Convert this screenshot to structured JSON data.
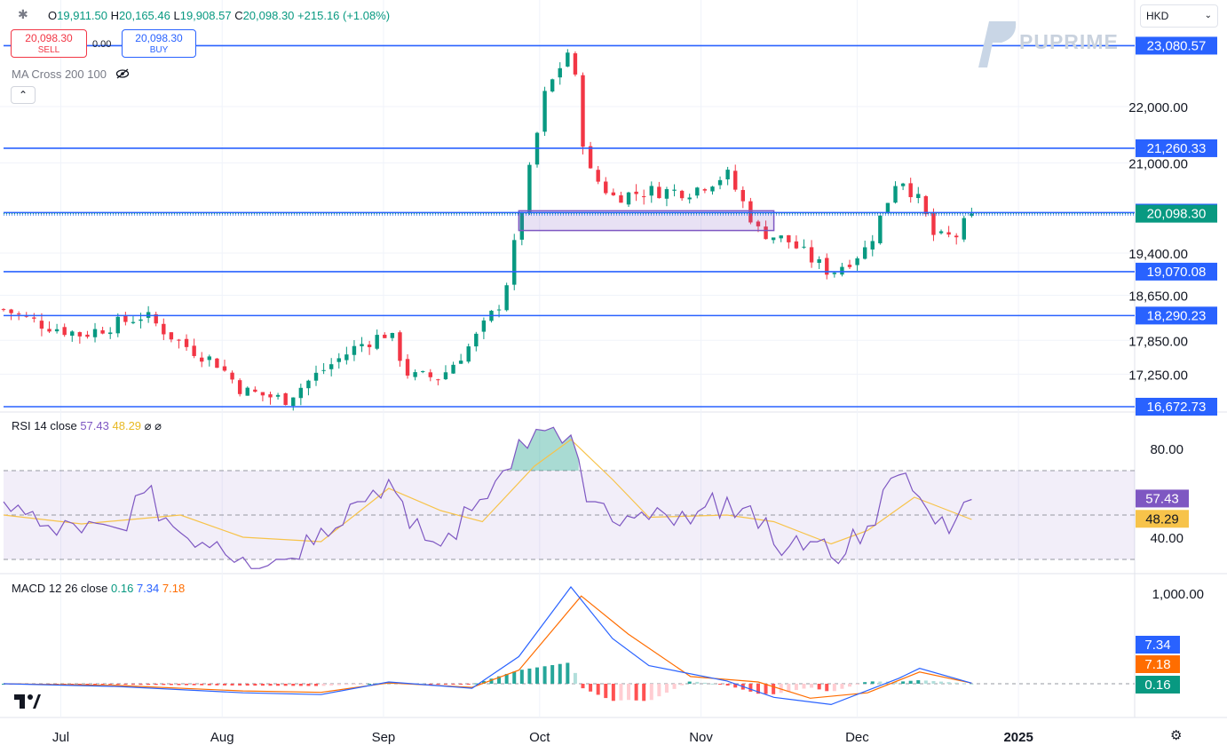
{
  "header": {
    "open_label": "O",
    "open": "19,911.50",
    "high_label": "H",
    "high": "20,165.46",
    "low_label": "L",
    "low": "19,908.57",
    "close_label": "C",
    "close": "20,098.30",
    "change": "+215.16 (+1.08%)"
  },
  "trade": {
    "sell_price": "20,098.30",
    "sell_label": "SELL",
    "spread": "0.00",
    "buy_price": "20,098.30",
    "buy_label": "BUY"
  },
  "currency": "HKD",
  "brand": "PUPRIME",
  "ma_label": "MA Cross 200 100",
  "icons": [
    "settings-icon",
    "eye-off-icon",
    "chevron-up-icon",
    "chevron-down-icon",
    "tradingview-logo-icon",
    "gear-icon"
  ],
  "colors": {
    "up": "#089981",
    "down": "#f23645",
    "level": "#2962ff",
    "rsi": "#7e57c2",
    "rsi_ma": "#f7c34a",
    "macd": "#2962ff",
    "signal": "#ff6d00"
  },
  "chart_data": [
    {
      "type": "candlestick",
      "title": "",
      "x_ticks": [
        "Jul",
        "Aug",
        "Sep",
        "Oct",
        "Nov",
        "Dec",
        "2025"
      ],
      "y_ticks": [
        "22,000.00",
        "21,000.00",
        "19,400.00",
        "18,650.00",
        "17,850.00",
        "17,250.00"
      ],
      "last_price": "20,098.30",
      "horizontal_levels": [
        "23,080.57",
        "21,260.33",
        "20,117.00",
        "19,070.08",
        "18,290.23",
        "16,672.73"
      ],
      "zone": {
        "from": 19800,
        "to": 20150
      },
      "close_path": [
        [
          "2024-06-20",
          18400
        ],
        [
          "2024-06-27",
          18150
        ],
        [
          "2024-07-05",
          17950
        ],
        [
          "2024-07-12",
          18150
        ],
        [
          "2024-07-17",
          18300
        ],
        [
          "2024-07-24",
          17800
        ],
        [
          "2024-07-31",
          17450
        ],
        [
          "2024-08-05",
          16950
        ],
        [
          "2024-08-13",
          16800
        ],
        [
          "2024-08-20",
          17300
        ],
        [
          "2024-08-27",
          17750
        ],
        [
          "2024-09-02",
          18000
        ],
        [
          "2024-09-06",
          17200
        ],
        [
          "2024-09-12",
          17200
        ],
        [
          "2024-09-18",
          17800
        ],
        [
          "2024-09-24",
          18600
        ],
        [
          "2024-09-27",
          19900
        ],
        [
          "2024-10-02",
          22200
        ],
        [
          "2024-10-07",
          23080
        ],
        [
          "2024-10-10",
          20900
        ],
        [
          "2024-10-15",
          20400
        ],
        [
          "2024-10-22",
          20500
        ],
        [
          "2024-10-30",
          20500
        ],
        [
          "2024-11-06",
          20800
        ],
        [
          "2024-11-12",
          19800
        ],
        [
          "2024-11-18",
          19600
        ],
        [
          "2024-11-22",
          19300
        ],
        [
          "2024-11-26",
          19050
        ],
        [
          "2024-12-03",
          19500
        ],
        [
          "2024-12-09",
          20800
        ],
        [
          "2024-12-13",
          20300
        ],
        [
          "2024-12-16",
          19650
        ],
        [
          "2024-12-20",
          19700
        ],
        [
          "2024-12-23",
          20098
        ]
      ]
    },
    {
      "type": "line",
      "title": "RSI",
      "label": "RSI 14 close",
      "value": "57.43",
      "ma_value": "48.29",
      "y_ticks": [
        "80.00",
        "40.00"
      ],
      "bands": [
        30,
        70
      ],
      "series": [
        {
          "name": "RSI",
          "points": [
            [
              "2024-06-20",
              56
            ],
            [
              "2024-06-27",
              45
            ],
            [
              "2024-07-05",
              42
            ],
            [
              "2024-07-12",
              44
            ],
            [
              "2024-07-17",
              60
            ],
            [
              "2024-07-24",
              42
            ],
            [
              "2024-07-31",
              38
            ],
            [
              "2024-08-05",
              31
            ],
            [
              "2024-08-13",
              30
            ],
            [
              "2024-08-20",
              44
            ],
            [
              "2024-08-27",
              56
            ],
            [
              "2024-09-02",
              66
            ],
            [
              "2024-09-06",
              44
            ],
            [
              "2024-09-12",
              36
            ],
            [
              "2024-09-18",
              52
            ],
            [
              "2024-09-24",
              70
            ],
            [
              "2024-09-27",
              84
            ],
            [
              "2024-10-02",
              88
            ],
            [
              "2024-10-07",
              86
            ],
            [
              "2024-10-10",
              56
            ],
            [
              "2024-10-15",
              47
            ],
            [
              "2024-10-22",
              48
            ],
            [
              "2024-10-30",
              46
            ],
            [
              "2024-11-06",
              58
            ],
            [
              "2024-11-12",
              44
            ],
            [
              "2024-11-18",
              36
            ],
            [
              "2024-11-22",
              38
            ],
            [
              "2024-11-26",
              31
            ],
            [
              "2024-12-03",
              45
            ],
            [
              "2024-12-09",
              68
            ],
            [
              "2024-12-13",
              58
            ],
            [
              "2024-12-16",
              46
            ],
            [
              "2024-12-20",
              48
            ],
            [
              "2024-12-23",
              57
            ]
          ]
        },
        {
          "name": "RSI MA",
          "points": [
            [
              "2024-06-20",
              50
            ],
            [
              "2024-07-05",
              46
            ],
            [
              "2024-07-24",
              50
            ],
            [
              "2024-08-05",
              40
            ],
            [
              "2024-08-20",
              38
            ],
            [
              "2024-09-02",
              62
            ],
            [
              "2024-09-12",
              52
            ],
            [
              "2024-09-20",
              47
            ],
            [
              "2024-09-30",
              72
            ],
            [
              "2024-10-07",
              84
            ],
            [
              "2024-10-15",
              66
            ],
            [
              "2024-10-22",
              49
            ],
            [
              "2024-11-06",
              50
            ],
            [
              "2024-11-15",
              47
            ],
            [
              "2024-11-26",
              37
            ],
            [
              "2024-12-03",
              43
            ],
            [
              "2024-12-12",
              58
            ],
            [
              "2024-12-23",
              48
            ]
          ]
        }
      ]
    },
    {
      "type": "line",
      "title": "MACD",
      "label": "MACD 12 26 close",
      "value": "0.16",
      "macd_value": "7.34",
      "signal_value": "7.18",
      "y_ticks": [
        "1,000.00"
      ],
      "series": [
        {
          "name": "MACD",
          "points": [
            [
              "2024-06-20",
              0
            ],
            [
              "2024-07-12",
              -30
            ],
            [
              "2024-08-05",
              -100
            ],
            [
              "2024-08-20",
              -120
            ],
            [
              "2024-09-02",
              20
            ],
            [
              "2024-09-18",
              -50
            ],
            [
              "2024-09-27",
              300
            ],
            [
              "2024-10-07",
              1070
            ],
            [
              "2024-10-15",
              500
            ],
            [
              "2024-10-22",
              200
            ],
            [
              "2024-11-06",
              30
            ],
            [
              "2024-11-15",
              -150
            ],
            [
              "2024-11-26",
              -230
            ],
            [
              "2024-12-09",
              60
            ],
            [
              "2024-12-13",
              170
            ],
            [
              "2024-12-23",
              7.34
            ]
          ]
        },
        {
          "name": "Signal",
          "points": [
            [
              "2024-06-20",
              0
            ],
            [
              "2024-07-12",
              -20
            ],
            [
              "2024-08-05",
              -80
            ],
            [
              "2024-08-20",
              -95
            ],
            [
              "2024-09-02",
              10
            ],
            [
              "2024-09-18",
              -40
            ],
            [
              "2024-09-27",
              150
            ],
            [
              "2024-10-09",
              970
            ],
            [
              "2024-10-18",
              550
            ],
            [
              "2024-10-30",
              80
            ],
            [
              "2024-11-12",
              20
            ],
            [
              "2024-11-22",
              -160
            ],
            [
              "2024-12-03",
              -100
            ],
            [
              "2024-12-13",
              130
            ],
            [
              "2024-12-23",
              7.18
            ]
          ]
        }
      ]
    }
  ]
}
